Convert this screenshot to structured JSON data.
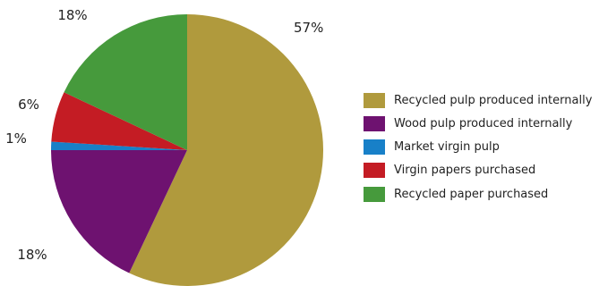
{
  "chart_data": {
    "type": "pie",
    "title": "",
    "slices": [
      {
        "label": "Recycled pulp produced internally",
        "value": 57,
        "value_label": "57%",
        "color": "#B09A3D"
      },
      {
        "label": "Wood pulp produced internally",
        "value": 18,
        "value_label": "18%",
        "color": "#6E1270"
      },
      {
        "label": "Market virgin pulp",
        "value": 1,
        "value_label": "1%",
        "color": "#1880C8"
      },
      {
        "label": "Virgin papers purchased",
        "value": 6,
        "value_label": "6%",
        "color": "#C41C24"
      },
      {
        "label": "Recycled paper purchased",
        "value": 18,
        "value_label": "18%",
        "color": "#469A3C"
      }
    ],
    "start_angle": "12 o'clock",
    "direction": "clockwise",
    "legend_position": "right"
  }
}
